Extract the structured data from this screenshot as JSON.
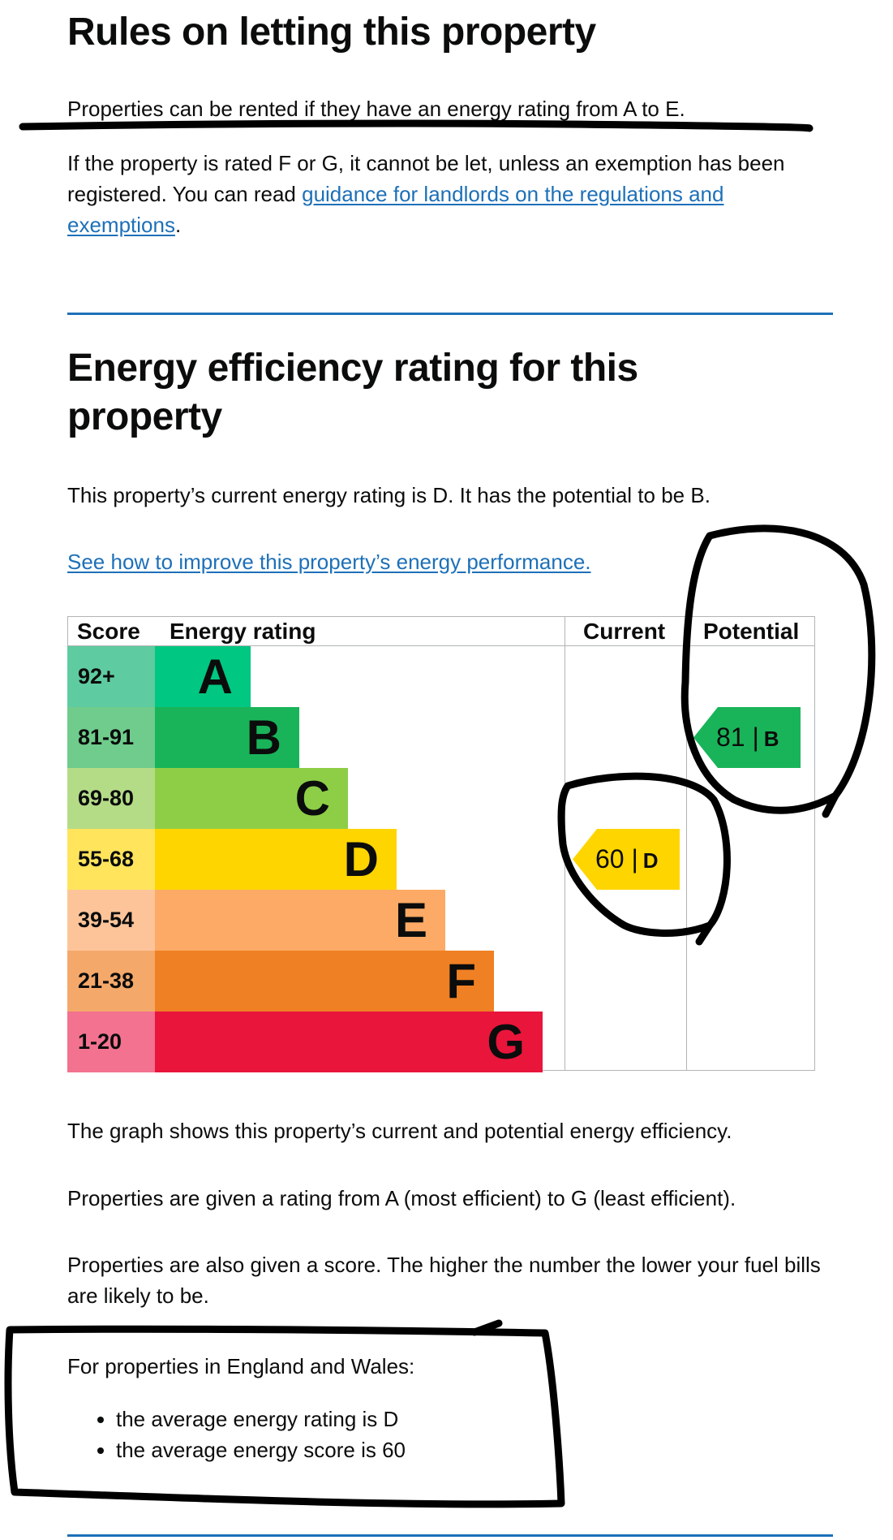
{
  "rules": {
    "heading": "Rules on letting this property",
    "intro": "Properties can be rented if they have an energy rating from A to E.",
    "body_before_link": "If the property is rated F or G, it cannot be let, unless an exemption has been registered. You can read ",
    "link_text": "guidance for landlords on the regulations and exemptions",
    "body_after_link": "."
  },
  "rating": {
    "heading": "Energy efficiency rating for this property",
    "summary": "This property’s current energy rating is D. It has the potential to be B.",
    "improve_link": "See how to improve this property’s energy performance."
  },
  "chart_data": {
    "type": "table",
    "columns": [
      "Score",
      "Energy rating",
      "Current",
      "Potential"
    ],
    "bands": [
      {
        "score": "92+",
        "letter": "A",
        "color": "#00c781"
      },
      {
        "score": "81-91",
        "letter": "B",
        "color": "#19b459"
      },
      {
        "score": "69-80",
        "letter": "C",
        "color": "#8dce46"
      },
      {
        "score": "55-68",
        "letter": "D",
        "color": "#ffd500"
      },
      {
        "score": "39-54",
        "letter": "E",
        "color": "#fcaa65"
      },
      {
        "score": "21-38",
        "letter": "F",
        "color": "#ef8023"
      },
      {
        "score": "1-20",
        "letter": "G",
        "color": "#e9153b"
      }
    ],
    "score_cell_colors": [
      "#5fcba0",
      "#6fcc8c",
      "#b4dc87",
      "#ffe45c",
      "#fdc49a",
      "#f4a96b",
      "#f27290"
    ],
    "current": {
      "score": "60",
      "letter": "D",
      "band_index": 3
    },
    "potential": {
      "score": "81",
      "letter": "B",
      "band_index": 1
    },
    "separator": "|"
  },
  "explanation": {
    "p1": "The graph shows this property’s current and potential energy efficiency.",
    "p2": "Properties are given a rating from A (most efficient) to G (least efficient).",
    "p3": "Properties are also given a score. The higher the number the lower your fuel bills are likely to be.",
    "p4": "For properties in England and Wales:",
    "bullets": [
      "the average energy rating is D",
      "the average energy score is 60"
    ]
  }
}
